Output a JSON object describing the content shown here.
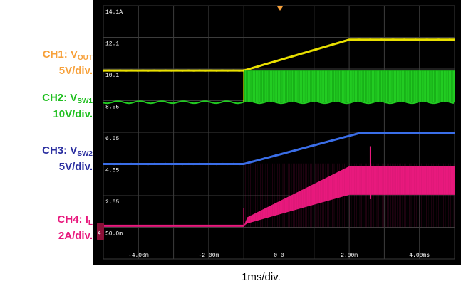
{
  "channels": [
    {
      "id": "ch1",
      "prefix": "CH1: V",
      "sub": "OUT",
      "scale": "5V/div.",
      "color": "#f7a13b"
    },
    {
      "id": "ch2",
      "prefix": "CH2: V",
      "sub": "SW1",
      "scale": "10V/div.",
      "color": "#1fbf1f"
    },
    {
      "id": "ch3",
      "prefix": "CH3: V",
      "sub": "SW2",
      "scale": "5V/div.",
      "color": "#2b2fa0"
    },
    {
      "id": "ch4",
      "prefix": "CH4: I",
      "sub": "L",
      "scale": "2A/div.",
      "color": "#e8197d"
    }
  ],
  "timebase": "1ms/div.",
  "chart_data": {
    "type": "line",
    "x_unit": "ms",
    "xlim": [
      -5,
      5
    ],
    "x_ticks": [
      -4,
      -2,
      0,
      2,
      4
    ],
    "x_tick_labels": [
      "-4.00m",
      "-2.00m",
      "0.0",
      "2.00m",
      "4.00ms"
    ],
    "y_divisions": 8,
    "level_labels": [
      "14.1A",
      "12.1",
      "10.1",
      "8.05",
      "6.05",
      "4.05",
      "2.05",
      "50.0m"
    ],
    "grid": true,
    "series": [
      {
        "name": "CH1: VOUT",
        "color": "#e9e000",
        "style": "line",
        "x": [
          -5,
          -1,
          2,
          5
        ],
        "y": [
          10.1,
          10.1,
          12.1,
          12.1
        ]
      },
      {
        "name": "CH2: VSW1",
        "color": "#22cc22",
        "style": "switching",
        "x": [
          -5,
          -1,
          -1,
          5
        ],
        "y_low": [
          8.05,
          8.05,
          8.05,
          8.05
        ],
        "y_high": [
          8.05,
          8.05,
          10.1,
          10.1
        ]
      },
      {
        "name": "CH3: VSW2",
        "color": "#3a6ee8",
        "style": "line",
        "x": [
          -5,
          -1,
          2.3,
          5
        ],
        "y": [
          4.05,
          4.05,
          6.05,
          6.05
        ]
      },
      {
        "name": "CH4: IL",
        "color": "#e8197d",
        "style": "band",
        "x": [
          -5,
          -1,
          -0.9,
          2,
          5
        ],
        "y_low": [
          0.05,
          0.05,
          0.2,
          2.05,
          2.05
        ],
        "y_high": [
          0.05,
          0.05,
          0.6,
          3.9,
          3.9
        ]
      }
    ]
  }
}
